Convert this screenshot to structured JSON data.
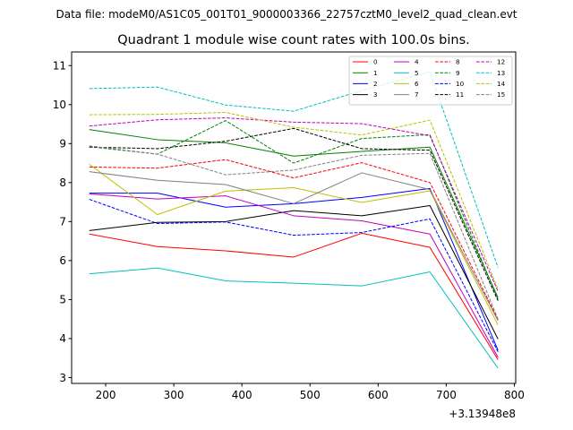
{
  "figure": {
    "suptitle": "Data file: modeM0/AS1C05_001T01_9000003366_22757cztM0_level2_quad_clean.evt",
    "background": "#ffffff"
  },
  "chart_data": {
    "type": "line",
    "title": "Quadrant 1 module wise count rates with 100.0s bins.",
    "xlabel": "",
    "ylabel": "",
    "x_offset_label": "+3.13948e8",
    "x": [
      176,
      276,
      376,
      476,
      576,
      676,
      776
    ],
    "xlim": [
      150,
      802
    ],
    "ylim": [
      2.85,
      11.35
    ],
    "xticks": [
      200,
      300,
      400,
      500,
      600,
      700,
      800
    ],
    "xtick_labels": [
      "200",
      "300",
      "400",
      "500",
      "600",
      "700",
      "800"
    ],
    "yticks": [
      3,
      4,
      5,
      6,
      7,
      8,
      9,
      10,
      11
    ],
    "ytick_labels": [
      "3",
      "4",
      "5",
      "6",
      "7",
      "8",
      "9",
      "10",
      "11"
    ],
    "grid": false,
    "legend": {
      "position": "top-right",
      "columns": 4
    },
    "series": [
      {
        "name": "0",
        "color": "#ff0000",
        "dash": "solid",
        "values": [
          6.68,
          6.36,
          6.25,
          6.09,
          6.7,
          6.34,
          3.46
        ]
      },
      {
        "name": "1",
        "color": "#008000",
        "dash": "solid",
        "values": [
          9.36,
          9.1,
          9.02,
          8.68,
          8.8,
          8.91,
          5.05
        ]
      },
      {
        "name": "2",
        "color": "#0000ff",
        "dash": "solid",
        "values": [
          7.73,
          7.73,
          7.37,
          7.46,
          7.62,
          7.85,
          3.7
        ]
      },
      {
        "name": "3",
        "color": "#000000",
        "dash": "solid",
        "values": [
          6.77,
          6.98,
          7.0,
          7.28,
          7.15,
          7.41,
          3.99
        ]
      },
      {
        "name": "4",
        "color": "#bf00bf",
        "dash": "solid",
        "values": [
          7.71,
          7.58,
          7.66,
          7.15,
          7.02,
          6.68,
          3.52
        ]
      },
      {
        "name": "5",
        "color": "#00bfbf",
        "dash": "solid",
        "values": [
          5.66,
          5.81,
          5.48,
          5.42,
          5.35,
          5.71,
          3.24
        ]
      },
      {
        "name": "6",
        "color": "#bfbf00",
        "dash": "solid",
        "values": [
          8.47,
          7.18,
          7.78,
          7.87,
          7.49,
          7.79,
          4.35
        ]
      },
      {
        "name": "7",
        "color": "#808080",
        "dash": "solid",
        "values": [
          8.28,
          8.06,
          7.95,
          7.46,
          8.25,
          7.82,
          4.46
        ]
      },
      {
        "name": "8",
        "color": "#ff0000",
        "dash": "dashed",
        "values": [
          8.4,
          8.37,
          8.59,
          8.12,
          8.51,
          8.0,
          4.49
        ]
      },
      {
        "name": "9",
        "color": "#008000",
        "dash": "dashed",
        "values": [
          8.92,
          8.73,
          9.59,
          8.5,
          9.13,
          9.23,
          5.0
        ]
      },
      {
        "name": "10",
        "color": "#0000ff",
        "dash": "dashed",
        "values": [
          7.57,
          6.95,
          6.99,
          6.65,
          6.72,
          7.07,
          3.66
        ]
      },
      {
        "name": "11",
        "color": "#000000",
        "dash": "dashed",
        "values": [
          8.91,
          8.87,
          9.06,
          9.39,
          8.87,
          8.83,
          4.97
        ]
      },
      {
        "name": "12",
        "color": "#bf00bf",
        "dash": "dashed",
        "values": [
          9.45,
          9.61,
          9.66,
          9.55,
          9.51,
          9.2,
          5.21
        ]
      },
      {
        "name": "13",
        "color": "#00bfbf",
        "dash": "dashed",
        "values": [
          10.41,
          10.45,
          9.99,
          9.83,
          10.36,
          10.84,
          5.82
        ]
      },
      {
        "name": "14",
        "color": "#bfbf00",
        "dash": "dashed",
        "values": [
          9.74,
          9.75,
          9.8,
          9.42,
          9.22,
          9.6,
          5.27
        ]
      },
      {
        "name": "15",
        "color": "#808080",
        "dash": "dashed",
        "values": [
          8.94,
          8.73,
          8.2,
          8.32,
          8.7,
          8.75,
          4.5
        ]
      }
    ]
  }
}
